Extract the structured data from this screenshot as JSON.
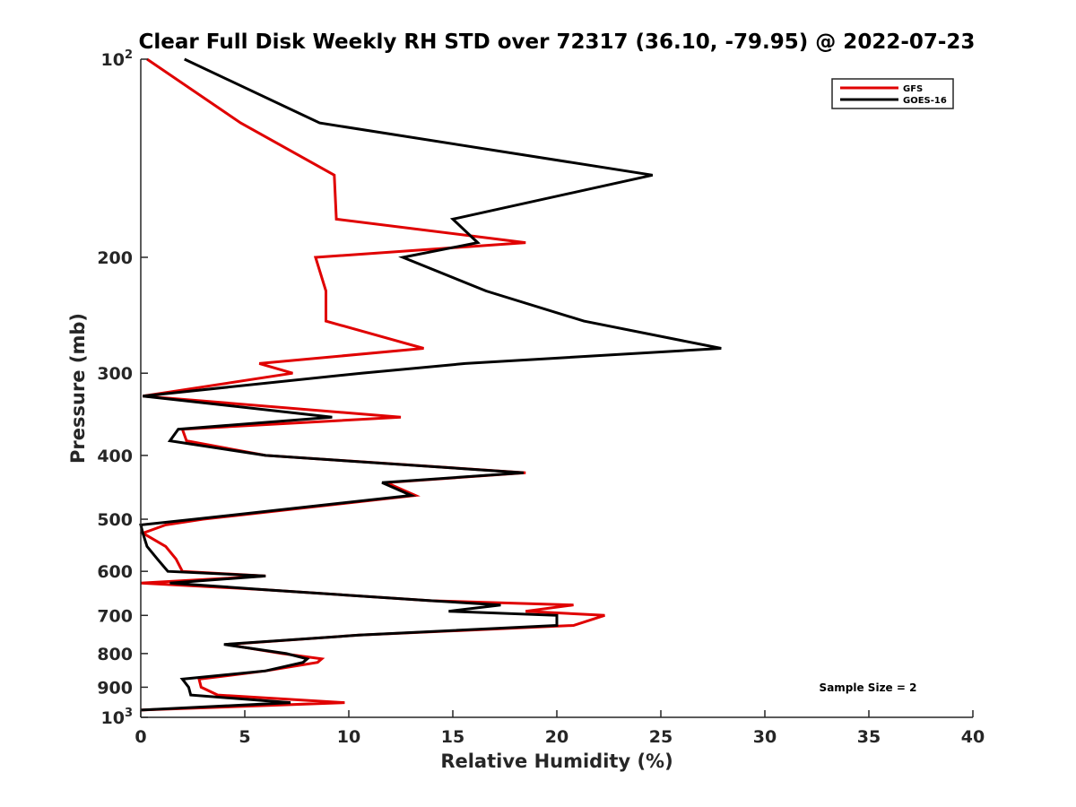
{
  "chart_data": {
    "type": "line",
    "title": "Clear Full Disk Weekly RH STD over 72317 (36.10, -79.95) @ 2022-07-23",
    "xlabel": "Relative Humidity (%)",
    "ylabel": "Pressure (mb)",
    "xlim": [
      0,
      40
    ],
    "ylim": [
      100,
      1000
    ],
    "yscale": "log",
    "y_reversed": true,
    "grid": false,
    "legend_position": "top-right",
    "xticks": [
      "0",
      "5",
      "10",
      "15",
      "20",
      "25",
      "30",
      "35",
      "40"
    ],
    "xtick_values": [
      0,
      5,
      10,
      15,
      20,
      25,
      30,
      35,
      40
    ],
    "yticks": [
      {
        "value": 100,
        "base": "10",
        "exp": "2"
      },
      {
        "value": 200,
        "label": "200"
      },
      {
        "value": 300,
        "label": "300"
      },
      {
        "value": 400,
        "label": "400"
      },
      {
        "value": 500,
        "label": "500"
      },
      {
        "value": 600,
        "label": "600"
      },
      {
        "value": 700,
        "label": "700"
      },
      {
        "value": 800,
        "label": "800"
      },
      {
        "value": 900,
        "label": "900"
      },
      {
        "value": 1000,
        "base": "10",
        "exp": "3"
      }
    ],
    "annotation": "Sample Size = 2",
    "series": [
      {
        "name": "GFS",
        "color": "#e00000",
        "points": [
          [
            0.3,
            100
          ],
          [
            4.8,
            125
          ],
          [
            9.3,
            150
          ],
          [
            9.4,
            175
          ],
          [
            18.5,
            190
          ],
          [
            8.4,
            200
          ],
          [
            8.9,
            225
          ],
          [
            8.9,
            250
          ],
          [
            13.6,
            275
          ],
          [
            5.7,
            290
          ],
          [
            7.3,
            300
          ],
          [
            0.1,
            325
          ],
          [
            12.5,
            350
          ],
          [
            2.0,
            365
          ],
          [
            2.2,
            380
          ],
          [
            6.0,
            400
          ],
          [
            18.5,
            425
          ],
          [
            11.8,
            440
          ],
          [
            13.2,
            460
          ],
          [
            3.0,
            500
          ],
          [
            1.2,
            510
          ],
          [
            0.1,
            525
          ],
          [
            1.2,
            550
          ],
          [
            1.7,
            575
          ],
          [
            2.0,
            600
          ],
          [
            6.0,
            610
          ],
          [
            0.0,
            625
          ],
          [
            6.0,
            640
          ],
          [
            14.0,
            665
          ],
          [
            20.8,
            675
          ],
          [
            18.5,
            690
          ],
          [
            22.3,
            700
          ],
          [
            20.8,
            725
          ],
          [
            10.5,
            750
          ],
          [
            4.1,
            775
          ],
          [
            6.8,
            800
          ],
          [
            8.7,
            815
          ],
          [
            8.5,
            825
          ],
          [
            6.0,
            850
          ],
          [
            2.8,
            875
          ],
          [
            2.9,
            900
          ],
          [
            3.7,
            925
          ],
          [
            9.8,
            950
          ],
          [
            0.0,
            975
          ]
        ]
      },
      {
        "name": "GOES-16",
        "color": "#000000",
        "points": [
          [
            2.1,
            100
          ],
          [
            8.6,
            125
          ],
          [
            24.6,
            150
          ],
          [
            15.0,
            175
          ],
          [
            16.2,
            190
          ],
          [
            12.6,
            200
          ],
          [
            16.6,
            225
          ],
          [
            21.3,
            250
          ],
          [
            27.9,
            275
          ],
          [
            15.6,
            290
          ],
          [
            10.6,
            300
          ],
          [
            0.1,
            325
          ],
          [
            9.2,
            350
          ],
          [
            1.8,
            365
          ],
          [
            1.4,
            380
          ],
          [
            6.0,
            400
          ],
          [
            18.4,
            425
          ],
          [
            11.6,
            440
          ],
          [
            13.0,
            460
          ],
          [
            2.6,
            500
          ],
          [
            0.0,
            510
          ],
          [
            0.1,
            525
          ],
          [
            0.3,
            550
          ],
          [
            0.8,
            575
          ],
          [
            1.3,
            600
          ],
          [
            6.0,
            610
          ],
          [
            1.4,
            625
          ],
          [
            6.0,
            640
          ],
          [
            14.0,
            665
          ],
          [
            17.3,
            675
          ],
          [
            14.8,
            690
          ],
          [
            20.0,
            700
          ],
          [
            20.0,
            725
          ],
          [
            10.5,
            750
          ],
          [
            4.0,
            775
          ],
          [
            7.0,
            800
          ],
          [
            8.0,
            815
          ],
          [
            7.8,
            825
          ],
          [
            6.0,
            850
          ],
          [
            2.0,
            875
          ],
          [
            2.3,
            900
          ],
          [
            2.4,
            925
          ],
          [
            7.2,
            950
          ],
          [
            0.0,
            975
          ]
        ]
      }
    ]
  }
}
